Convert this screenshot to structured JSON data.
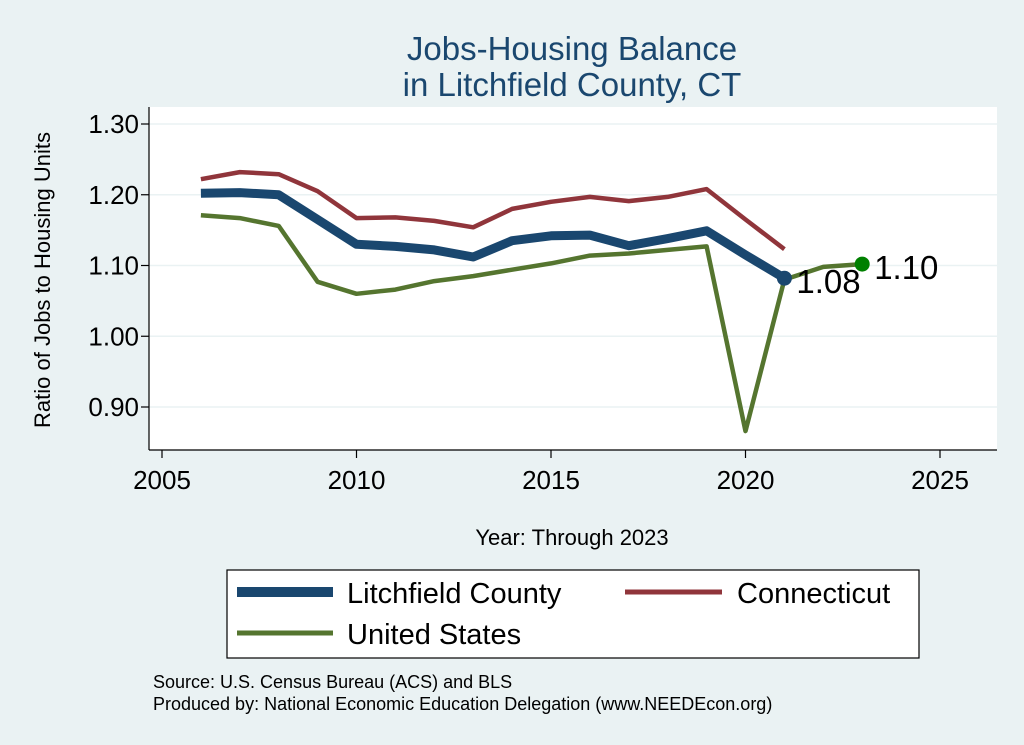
{
  "chart_data": {
    "type": "line",
    "title": [
      "Jobs-Housing Balance",
      "in Litchfield County, CT"
    ],
    "xlabel": "Year: Through 2023",
    "ylabel": "Ratio of Jobs to Housing Units",
    "xlim": [
      2005,
      2026.5
    ],
    "ylim": [
      0.858,
      1.318
    ],
    "xticks": [
      2005,
      2010,
      2015,
      2020,
      2025
    ],
    "yticks": [
      0.9,
      1.0,
      1.1,
      1.2,
      1.3
    ],
    "ytick_labels": [
      "0.90",
      "1.00",
      "1.10",
      "1.20",
      "1.30"
    ],
    "grid": "horizontal",
    "legend": "bottom",
    "series": [
      {
        "name": "Connecticut",
        "color": "#90353b",
        "x": [
          2006,
          2007,
          2008,
          2009,
          2010,
          2011,
          2012,
          2013,
          2014,
          2015,
          2016,
          2017,
          2018,
          2019,
          2020,
          2021
        ],
        "values": [
          1.222,
          1.232,
          1.229,
          1.205,
          1.167,
          1.168,
          1.163,
          1.154,
          1.18,
          1.19,
          1.197,
          1.191,
          1.197,
          1.208,
          1.165,
          1.123
        ]
      },
      {
        "name": "Litchfield County",
        "color": "#1a476f",
        "x": [
          2006,
          2007,
          2008,
          2009,
          2010,
          2011,
          2012,
          2013,
          2014,
          2015,
          2016,
          2017,
          2018,
          2019,
          2020,
          2021
        ],
        "values": [
          1.202,
          1.203,
          1.2,
          1.165,
          1.13,
          1.127,
          1.122,
          1.112,
          1.135,
          1.142,
          1.143,
          1.128,
          1.138,
          1.149,
          1.115,
          1.082
        ]
      },
      {
        "name": "United States",
        "color": "#55752f",
        "x": [
          2006,
          2007,
          2008,
          2009,
          2010,
          2011,
          2012,
          2013,
          2014,
          2015,
          2016,
          2017,
          2018,
          2019,
          2020,
          2021,
          2022,
          2023
        ],
        "values": [
          1.171,
          1.167,
          1.156,
          1.077,
          1.06,
          1.066,
          1.078,
          1.085,
          1.094,
          1.103,
          1.114,
          1.117,
          1.122,
          1.127,
          0.866,
          1.08,
          1.098,
          1.102
        ]
      }
    ],
    "point_labels": [
      {
        "text": "1.08",
        "x": 2021,
        "y": 1.082,
        "color": "#1a476f"
      },
      {
        "text": "1.10",
        "x": 2023,
        "y": 1.102,
        "color": "#008000"
      }
    ]
  },
  "source": {
    "line1": "Source: U.S. Census Bureau (ACS) and BLS",
    "line2": "Produced by: National Economic Education Delegation (www.NEEDEcon.org)"
  }
}
